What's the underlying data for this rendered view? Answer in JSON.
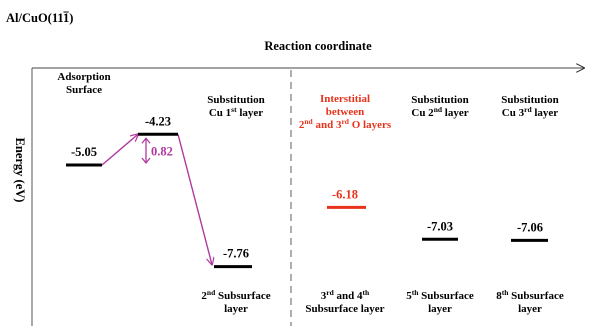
{
  "title": {
    "surface": "Al/CuO(11",
    "bar": "1",
    "close": ")"
  },
  "axes": {
    "x_label": "Reaction coordinate",
    "y_label": "Energy (eV)"
  },
  "barrier": {
    "value": "0.82",
    "color": "#b0399e"
  },
  "states": [
    {
      "energy_label": "-5.05",
      "energy": -5.05,
      "color": "#000000",
      "label_top": [
        [
          "Adsorption"
        ],
        [
          "Surface"
        ]
      ],
      "label_bottom": []
    },
    {
      "energy_label": "-4.23",
      "energy": -4.23,
      "color": "#000000",
      "label_top": [],
      "label_bottom": []
    },
    {
      "energy_label": "-7.76",
      "energy": -7.76,
      "color": "#000000",
      "label_top": [
        [
          "Substitution"
        ],
        [
          "Cu 1",
          "st",
          " layer"
        ]
      ],
      "label_bottom": [
        [
          "2",
          "nd",
          " Subsurface"
        ],
        [
          "layer"
        ]
      ]
    },
    {
      "energy_label": "-6.18",
      "energy": -6.18,
      "color": "#e8331c",
      "label_top": [
        [
          "Interstitial"
        ],
        [
          "between"
        ],
        [
          "2",
          "nd",
          " and 3",
          "rd",
          " O layers"
        ]
      ],
      "label_bottom": [
        [
          "3",
          "rd",
          "  and 4",
          "th",
          ""
        ],
        [
          "Subsurface layer"
        ]
      ]
    },
    {
      "energy_label": "-7.03",
      "energy": -7.03,
      "color": "#000000",
      "label_top": [
        [
          "Substitution"
        ],
        [
          "Cu 2",
          "nd",
          " layer"
        ]
      ],
      "label_bottom": [
        [
          "5",
          "th",
          " Subsurface"
        ],
        [
          "layer"
        ]
      ]
    },
    {
      "energy_label": "-7.06",
      "energy": -7.06,
      "color": "#000000",
      "label_top": [
        [
          "Substitution"
        ],
        [
          "Cu 3",
          "rd",
          " layer"
        ]
      ],
      "label_bottom": [
        [
          "8",
          "th",
          " Subsurface"
        ],
        [
          "layer"
        ]
      ]
    }
  ]
}
